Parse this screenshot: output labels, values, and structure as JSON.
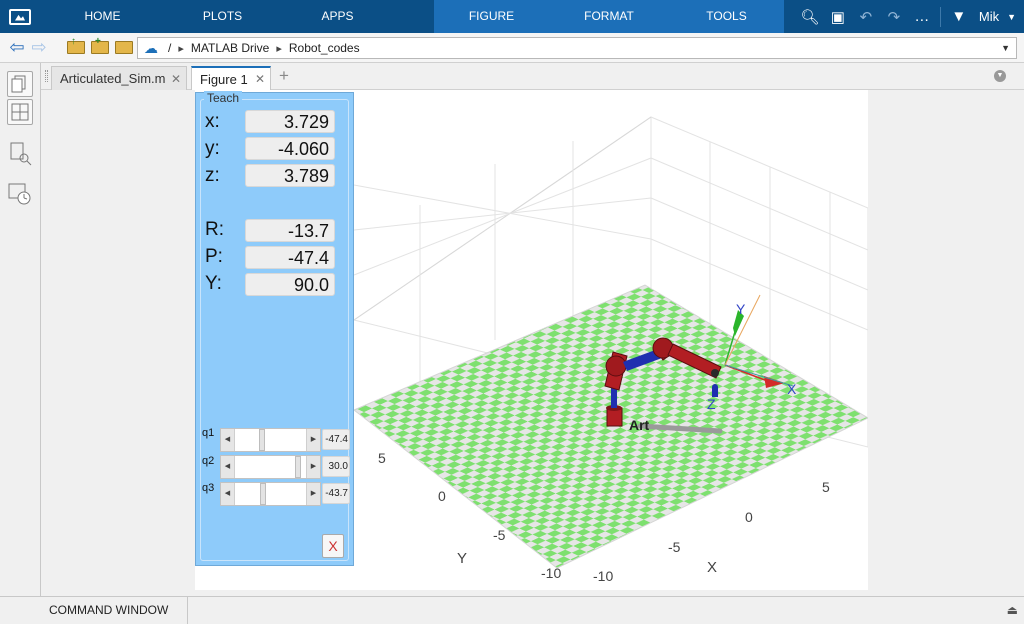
{
  "ribbon": {
    "tabs": [
      "HOME",
      "PLOTS",
      "APPS"
    ],
    "figure_tabs": [
      "FIGURE",
      "FORMAT",
      "TOOLS"
    ],
    "user": "Mik"
  },
  "address": {
    "root": "/",
    "crumbs": [
      "MATLAB Drive",
      "Robot_codes"
    ]
  },
  "doc_tabs": [
    "Articulated_Sim.m",
    "Figure 1"
  ],
  "teach": {
    "legend": "Teach",
    "position": [
      {
        "label": "x:",
        "value": "3.729"
      },
      {
        "label": "y:",
        "value": "-4.060"
      },
      {
        "label": "z:",
        "value": "3.789"
      }
    ],
    "orientation": [
      {
        "label": "R:",
        "value": "-13.7"
      },
      {
        "label": "P:",
        "value": "-47.4"
      },
      {
        "label": "Y:",
        "value": "90.0"
      }
    ],
    "joints": [
      {
        "label": "q1",
        "value": "-47.4",
        "level": 0.37
      },
      {
        "label": "q2",
        "value": "30.0",
        "level": 0.92
      },
      {
        "label": "q3",
        "value": "-43.7",
        "level": 0.38
      }
    ],
    "close_label": "X"
  },
  "plot": {
    "x_ticks": [
      "-10",
      "-5",
      "0",
      "5"
    ],
    "y_ticks": [
      "-10",
      "-5",
      "0",
      "5"
    ],
    "xlabel": "X",
    "ylabel": "Y",
    "frame_labels": [
      "X",
      "Y",
      "Z"
    ],
    "robot_name_fragment": "Art",
    "colors": {
      "floor_green": "#7ee06f",
      "floor_white": "#e6e6e6",
      "link_red": "#b21e23",
      "link_blue": "#1f2fb0"
    }
  },
  "command_window": {
    "label": "COMMAND WINDOW"
  }
}
